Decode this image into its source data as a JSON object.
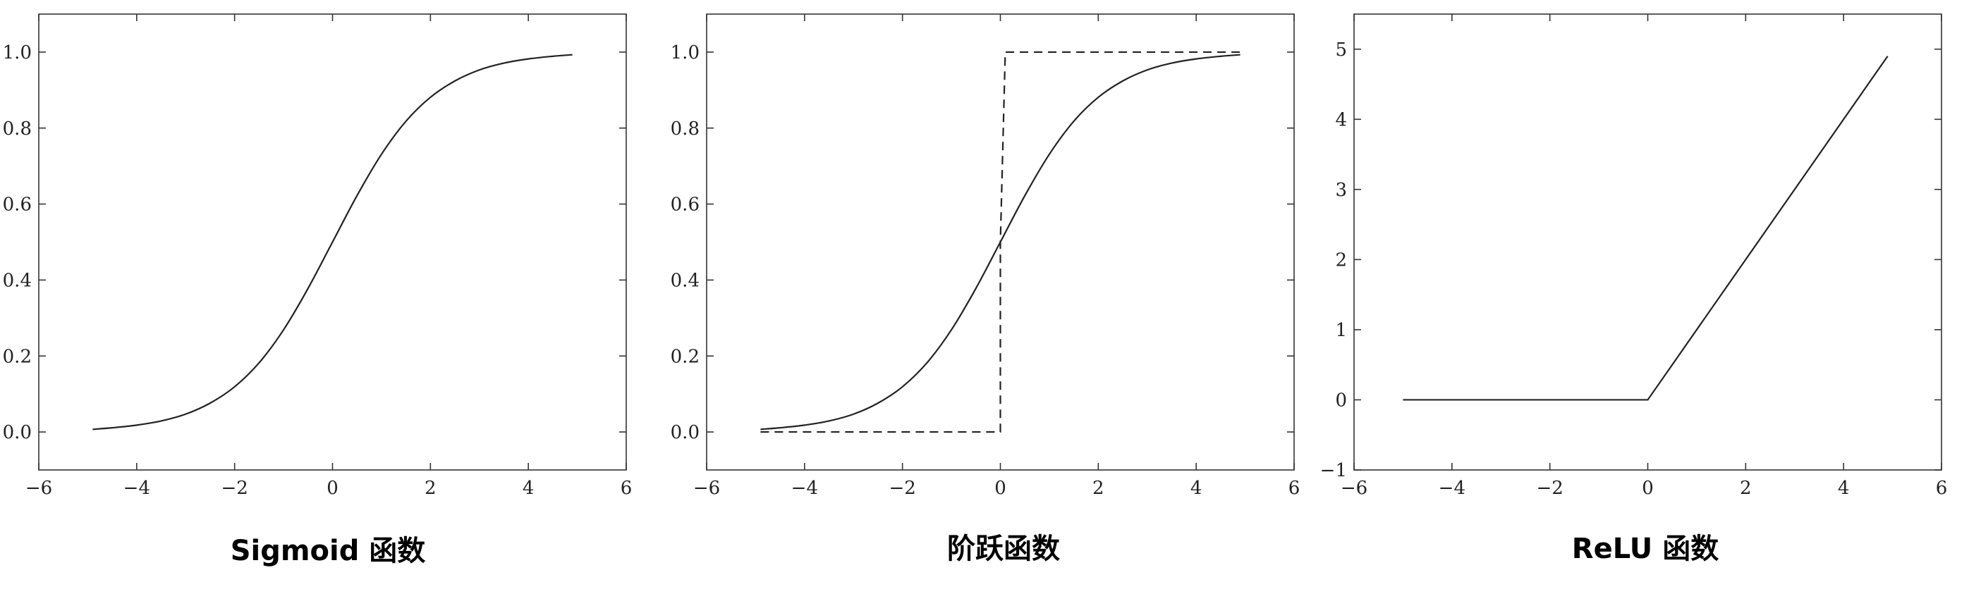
{
  "chart_data": [
    {
      "type": "line",
      "caption": "Sigmoid 函数",
      "xlim": [
        -6,
        6
      ],
      "ylim": [
        -0.1,
        1.1
      ],
      "xticks": [
        -6,
        -4,
        -2,
        0,
        2,
        4,
        6
      ],
      "xtick_labels": [
        "−6",
        "−4",
        "−2",
        "0",
        "2",
        "4",
        "6"
      ],
      "yticks": [
        0.0,
        0.2,
        0.4,
        0.6,
        0.8,
        1.0
      ],
      "ytick_labels": [
        "0.0",
        "0.2",
        "0.4",
        "0.6",
        "0.8",
        "1.0"
      ],
      "grid": false,
      "series": [
        {
          "style": "solid",
          "x": [
            -4.9,
            -4.5,
            -4.0,
            -3.5,
            -3.0,
            -2.5,
            -2.0,
            -1.5,
            -1.0,
            -0.5,
            0.0,
            0.5,
            1.0,
            1.5,
            2.0,
            2.5,
            3.0,
            3.5,
            4.0,
            4.5,
            4.9
          ],
          "y": [
            0.007,
            0.011,
            0.018,
            0.029,
            0.047,
            0.076,
            0.119,
            0.182,
            0.269,
            0.378,
            0.5,
            0.622,
            0.731,
            0.818,
            0.881,
            0.924,
            0.953,
            0.971,
            0.982,
            0.989,
            0.993
          ]
        }
      ]
    },
    {
      "type": "line",
      "caption": "阶跃函数",
      "xlim": [
        -6,
        6
      ],
      "ylim": [
        -0.1,
        1.1
      ],
      "xticks": [
        -6,
        -4,
        -2,
        0,
        2,
        4,
        6
      ],
      "xtick_labels": [
        "−6",
        "−4",
        "−2",
        "0",
        "2",
        "4",
        "6"
      ],
      "yticks": [
        0.0,
        0.2,
        0.4,
        0.6,
        0.8,
        1.0
      ],
      "ytick_labels": [
        "0.0",
        "0.2",
        "0.4",
        "0.6",
        "0.8",
        "1.0"
      ],
      "grid": false,
      "series": [
        {
          "style": "solid",
          "x": [
            -4.9,
            -4.5,
            -4.0,
            -3.5,
            -3.0,
            -2.5,
            -2.0,
            -1.5,
            -1.0,
            -0.5,
            0.0,
            0.5,
            1.0,
            1.5,
            2.0,
            2.5,
            3.0,
            3.5,
            4.0,
            4.5,
            4.9
          ],
          "y": [
            0.007,
            0.011,
            0.018,
            0.029,
            0.047,
            0.076,
            0.119,
            0.182,
            0.269,
            0.378,
            0.5,
            0.622,
            0.731,
            0.818,
            0.881,
            0.924,
            0.953,
            0.971,
            0.982,
            0.989,
            0.993
          ]
        },
        {
          "style": "dashed",
          "x": [
            -4.9,
            0.0,
            0.0,
            0.1,
            4.9
          ],
          "y": [
            0.0,
            0.0,
            0.5,
            1.0,
            1.0
          ]
        }
      ]
    },
    {
      "type": "line",
      "caption": "ReLU 函数",
      "xlim": [
        -6,
        6
      ],
      "ylim": [
        -1,
        5.5
      ],
      "xticks": [
        -6,
        -4,
        -2,
        0,
        2,
        4,
        6
      ],
      "xtick_labels": [
        "−6",
        "−4",
        "−2",
        "0",
        "2",
        "4",
        "6"
      ],
      "yticks": [
        -1,
        0,
        1,
        2,
        3,
        4,
        5
      ],
      "ytick_labels": [
        "−1",
        "0",
        "1",
        "2",
        "3",
        "4",
        "5"
      ],
      "grid": false,
      "series": [
        {
          "style": "solid",
          "x": [
            -5.0,
            0.0,
            4.9
          ],
          "y": [
            0.0,
            0.0,
            4.9
          ]
        }
      ]
    }
  ]
}
